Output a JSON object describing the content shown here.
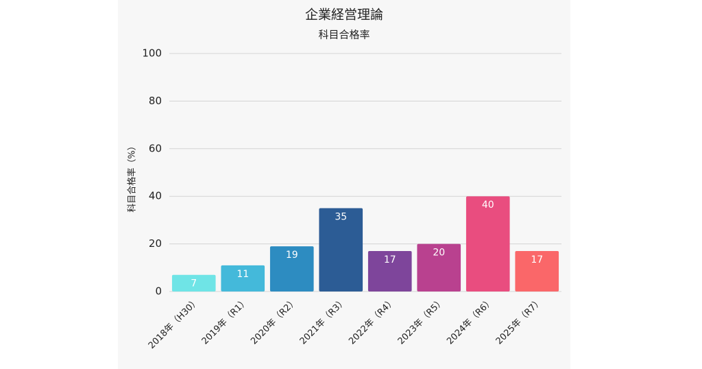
{
  "chart_data": {
    "type": "bar",
    "title": "企業経営理論",
    "subtitle": "科目合格率",
    "y_label": "科目合格率（%）",
    "categories": [
      "2018年（H30）",
      "2019年（R1）",
      "2020年（R2）",
      "2021年（R3）",
      "2022年（R4）",
      "2023年（R5）",
      "2024年（R6）",
      "2025年（R7）"
    ],
    "values": [
      7,
      11,
      19,
      35,
      17,
      20,
      40,
      17
    ],
    "colors": [
      "#6fe4e6",
      "#44b9da",
      "#2d8cc1",
      "#2c5c95",
      "#7e459b",
      "#b9418f",
      "#e94d7f",
      "#fa6769"
    ],
    "ylim": [
      0,
      100
    ],
    "yticks": [
      0,
      20,
      40,
      60,
      80,
      100
    ],
    "grid": true
  }
}
